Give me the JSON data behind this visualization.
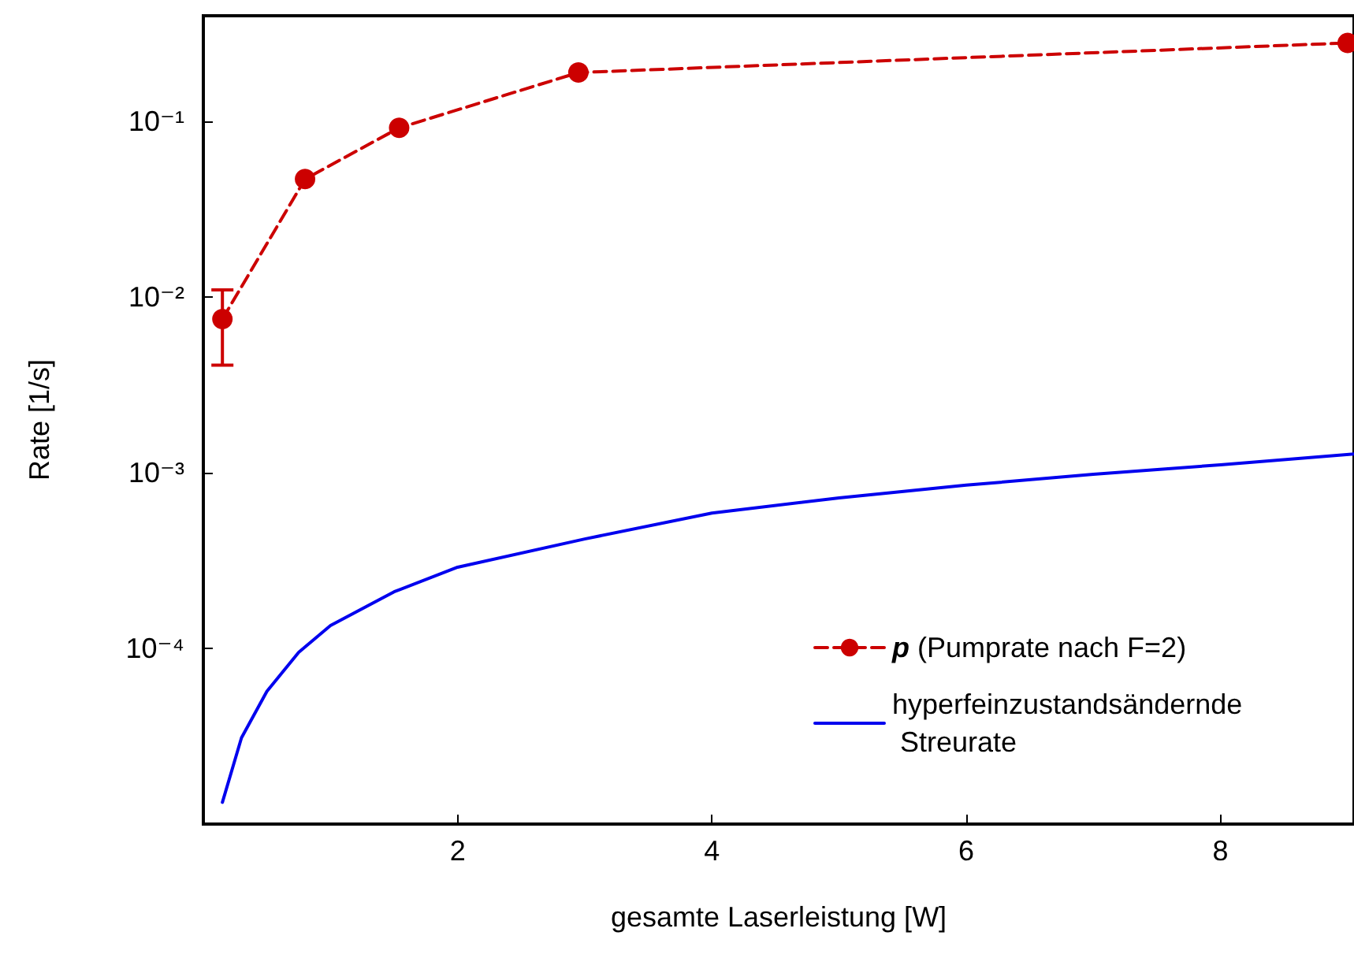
{
  "chart_data": {
    "type": "line",
    "xlabel": "gesamte Laserleistung [W]",
    "ylabel": "Rate [1/s]",
    "log": "y",
    "xlim": [
      0,
      9.05
    ],
    "xticks": [
      2,
      4,
      6,
      8
    ],
    "ylim": [
      1e-05,
      0.4
    ],
    "yticks": [
      {
        "value": 0.1,
        "label": "10⁻¹"
      },
      {
        "value": 0.01,
        "label": "10⁻²"
      },
      {
        "value": 0.001,
        "label": "10⁻³"
      },
      {
        "value": 0.0001,
        "label": "10⁻⁴"
      }
    ],
    "grid": false,
    "legend": "bottom right",
    "series": [
      {
        "name": "p (Pumprate nach F=2)",
        "color": "#cc0000",
        "marker": "circle",
        "line_style": "dashed",
        "x": [
          0.15,
          0.8,
          1.54,
          2.95,
          9.0
        ],
        "values": [
          0.0075,
          0.047,
          0.092,
          0.19,
          0.28
        ],
        "errors": [
          [
            0.0041,
            0.011
          ],
          null,
          null,
          null,
          null
        ]
      },
      {
        "name": "hyperfeinzustandsändernde Streurate",
        "color": "#0000ee",
        "marker": "none",
        "line_style": "solid",
        "x": [
          0.15,
          0.3,
          0.5,
          0.75,
          1,
          1.5,
          2,
          3,
          4,
          5,
          6,
          7,
          8,
          9.05
        ],
        "values": [
          1.33e-05,
          3.1e-05,
          5.7e-05,
          9.5e-05,
          0.000135,
          0.00021,
          0.00029,
          0.00042,
          0.00059,
          0.00072,
          0.00085,
          0.00098,
          0.00111,
          0.00128
        ]
      }
    ]
  }
}
